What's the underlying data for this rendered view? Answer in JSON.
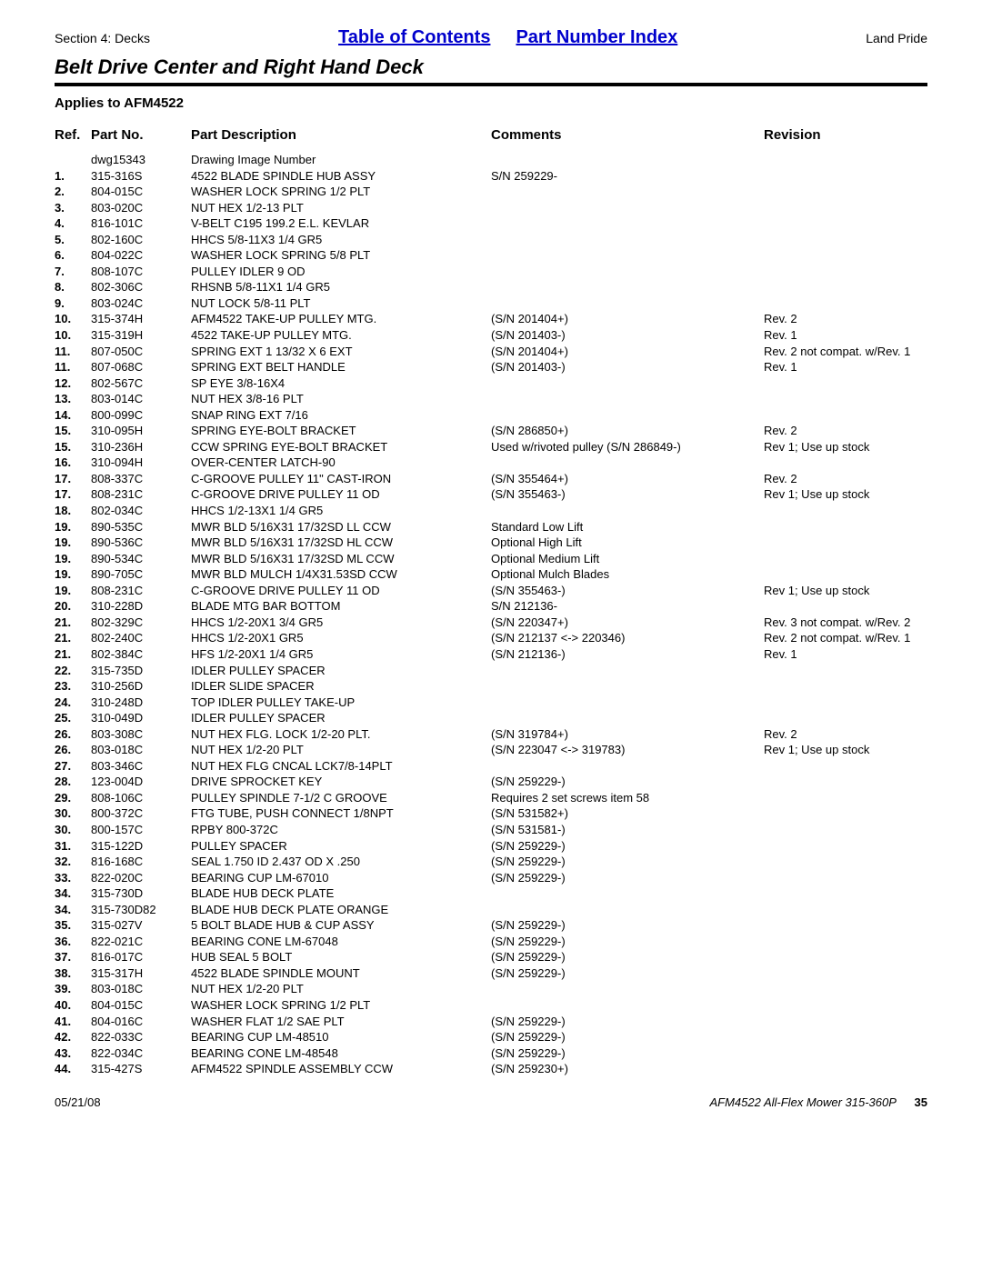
{
  "header": {
    "section": "Section 4: Decks",
    "link1": "Table of Contents",
    "link2": "Part Number Index",
    "brand": "Land Pride"
  },
  "title": "Belt Drive Center and Right Hand Deck",
  "applies": "Applies to AFM4522",
  "columns": {
    "ref": "Ref.",
    "part": "Part No.",
    "desc": "Part Description",
    "comm": "Comments",
    "rev": "Revision"
  },
  "rows": [
    {
      "ref": "",
      "part": "dwg15343",
      "desc": "Drawing Image Number",
      "comm": "",
      "rev": ""
    },
    {
      "ref": "1.",
      "part": "315-316S",
      "desc": "4522 BLADE SPINDLE HUB ASSY",
      "comm": "S/N 259229-",
      "rev": ""
    },
    {
      "ref": "2.",
      "part": "804-015C",
      "desc": "WASHER LOCK SPRING 1/2 PLT",
      "comm": "",
      "rev": ""
    },
    {
      "ref": "3.",
      "part": "803-020C",
      "desc": "NUT HEX 1/2-13 PLT",
      "comm": "",
      "rev": ""
    },
    {
      "ref": "4.",
      "part": "816-101C",
      "desc": "V-BELT C195 199.2 E.L. KEVLAR",
      "comm": "",
      "rev": ""
    },
    {
      "ref": "5.",
      "part": "802-160C",
      "desc": "HHCS 5/8-11X3 1/4 GR5",
      "comm": "",
      "rev": ""
    },
    {
      "ref": "6.",
      "part": "804-022C",
      "desc": "WASHER LOCK SPRING 5/8 PLT",
      "comm": "",
      "rev": ""
    },
    {
      "ref": "7.",
      "part": "808-107C",
      "desc": "PULLEY IDLER 9 OD",
      "comm": "",
      "rev": ""
    },
    {
      "ref": "8.",
      "part": "802-306C",
      "desc": "RHSNB 5/8-11X1 1/4 GR5",
      "comm": "",
      "rev": ""
    },
    {
      "ref": "9.",
      "part": "803-024C",
      "desc": "NUT LOCK 5/8-11 PLT",
      "comm": "",
      "rev": ""
    },
    {
      "ref": "10.",
      "part": "315-374H",
      "desc": "AFM4522 TAKE-UP PULLEY MTG.",
      "comm": "(S/N 201404+)",
      "rev": "Rev. 2"
    },
    {
      "ref": "10.",
      "part": "315-319H",
      "desc": "4522 TAKE-UP PULLEY MTG.",
      "comm": "(S/N 201403-)",
      "rev": "Rev. 1"
    },
    {
      "ref": "11.",
      "part": "807-050C",
      "desc": "SPRING EXT 1 13/32 X 6 EXT",
      "comm": "(S/N 201404+)",
      "rev": "Rev. 2 not compat. w/Rev. 1"
    },
    {
      "ref": "11.",
      "part": "807-068C",
      "desc": "SPRING EXT BELT HANDLE",
      "comm": "(S/N 201403-)",
      "rev": "Rev. 1"
    },
    {
      "ref": "12.",
      "part": "802-567C",
      "desc": "SP EYE 3/8-16X4",
      "comm": "",
      "rev": ""
    },
    {
      "ref": "13.",
      "part": "803-014C",
      "desc": "NUT HEX 3/8-16 PLT",
      "comm": "",
      "rev": ""
    },
    {
      "ref": "14.",
      "part": "800-099C",
      "desc": "SNAP RING EXT 7/16",
      "comm": "",
      "rev": ""
    },
    {
      "ref": "15.",
      "part": "310-095H",
      "desc": "SPRING EYE-BOLT BRACKET",
      "comm": "(S/N 286850+)",
      "rev": "Rev. 2"
    },
    {
      "ref": "15.",
      "part": "310-236H",
      "desc": "CCW SPRING EYE-BOLT BRACKET",
      "comm": "Used w/rivoted pulley (S/N 286849-)",
      "rev": "Rev 1; Use up stock"
    },
    {
      "ref": "16.",
      "part": "310-094H",
      "desc": "OVER-CENTER LATCH-90",
      "comm": "",
      "rev": ""
    },
    {
      "ref": "17.",
      "part": "808-337C",
      "desc": "C-GROOVE PULLEY 11\" CAST-IRON",
      "comm": "(S/N 355464+)",
      "rev": "Rev. 2"
    },
    {
      "ref": "17.",
      "part": "808-231C",
      "desc": "C-GROOVE DRIVE PULLEY 11 OD",
      "comm": "(S/N 355463-)",
      "rev": "Rev 1; Use up stock"
    },
    {
      "ref": "18.",
      "part": "802-034C",
      "desc": "HHCS 1/2-13X1 1/4 GR5",
      "comm": "",
      "rev": ""
    },
    {
      "ref": "19.",
      "part": "890-535C",
      "desc": "MWR BLD 5/16X31 17/32SD LL CCW",
      "comm": "Standard Low Lift",
      "rev": ""
    },
    {
      "ref": "19.",
      "part": "890-536C",
      "desc": "MWR BLD 5/16X31 17/32SD HL CCW",
      "comm": "Optional High Lift",
      "rev": ""
    },
    {
      "ref": "19.",
      "part": "890-534C",
      "desc": "MWR BLD 5/16X31 17/32SD ML CCW",
      "comm": "Optional Medium Lift",
      "rev": ""
    },
    {
      "ref": "19.",
      "part": "890-705C",
      "desc": "MWR BLD MULCH 1/4X31.53SD CCW",
      "comm": "Optional Mulch Blades",
      "rev": ""
    },
    {
      "ref": "19.",
      "part": "808-231C",
      "desc": "C-GROOVE DRIVE PULLEY 11 OD",
      "comm": "(S/N 355463-)",
      "rev": "Rev 1; Use up stock"
    },
    {
      "ref": "20.",
      "part": "310-228D",
      "desc": "BLADE MTG BAR BOTTOM",
      "comm": "S/N 212136-",
      "rev": ""
    },
    {
      "ref": "21.",
      "part": "802-329C",
      "desc": "HHCS 1/2-20X1 3/4 GR5",
      "comm": "(S/N 220347+)",
      "rev": "Rev. 3 not compat. w/Rev. 2"
    },
    {
      "ref": "21.",
      "part": "802-240C",
      "desc": "HHCS 1/2-20X1 GR5",
      "comm": "(S/N 212137 <-> 220346)",
      "rev": "Rev. 2 not compat. w/Rev. 1"
    },
    {
      "ref": "21.",
      "part": "802-384C",
      "desc": "HFS 1/2-20X1 1/4 GR5",
      "comm": "(S/N 212136-)",
      "rev": "Rev. 1"
    },
    {
      "ref": "22.",
      "part": "315-735D",
      "desc": "IDLER PULLEY SPACER",
      "comm": "",
      "rev": ""
    },
    {
      "ref": "23.",
      "part": "310-256D",
      "desc": "IDLER SLIDE SPACER",
      "comm": "",
      "rev": ""
    },
    {
      "ref": "24.",
      "part": "310-248D",
      "desc": "TOP IDLER PULLEY TAKE-UP",
      "comm": "",
      "rev": ""
    },
    {
      "ref": "25.",
      "part": "310-049D",
      "desc": "IDLER PULLEY SPACER",
      "comm": "",
      "rev": ""
    },
    {
      "ref": "26.",
      "part": "803-308C",
      "desc": "NUT HEX FLG. LOCK 1/2-20 PLT.",
      "comm": "(S/N 319784+)",
      "rev": "Rev. 2"
    },
    {
      "ref": "26.",
      "part": "803-018C",
      "desc": "NUT HEX 1/2-20 PLT",
      "comm": "(S/N 223047 <-> 319783)",
      "rev": "Rev 1; Use up stock"
    },
    {
      "ref": "27.",
      "part": "803-346C",
      "desc": "NUT HEX FLG CNCAL LCK7/8-14PLT",
      "comm": "",
      "rev": ""
    },
    {
      "ref": "28.",
      "part": "123-004D",
      "desc": "DRIVE SPROCKET KEY",
      "comm": "(S/N 259229-)",
      "rev": ""
    },
    {
      "ref": "29.",
      "part": "808-106C",
      "desc": "PULLEY SPINDLE 7-1/2 C GROOVE",
      "comm": "Requires 2 set screws item 58",
      "rev": ""
    },
    {
      "ref": "30.",
      "part": "800-372C",
      "desc": "FTG TUBE, PUSH CONNECT 1/8NPT",
      "comm": "(S/N 531582+)",
      "rev": ""
    },
    {
      "ref": "30.",
      "part": "800-157C",
      "desc": "RPBY 800-372C",
      "comm": "(S/N 531581-)",
      "rev": ""
    },
    {
      "ref": "31.",
      "part": "315-122D",
      "desc": "PULLEY SPACER",
      "comm": "(S/N 259229-)",
      "rev": ""
    },
    {
      "ref": "32.",
      "part": "816-168C",
      "desc": "SEAL 1.750 ID 2.437 OD X .250",
      "comm": "(S/N 259229-)",
      "rev": ""
    },
    {
      "ref": "33.",
      "part": "822-020C",
      "desc": "BEARING CUP LM-67010",
      "comm": "(S/N 259229-)",
      "rev": ""
    },
    {
      "ref": "34.",
      "part": "315-730D",
      "desc": "BLADE HUB DECK PLATE",
      "comm": "",
      "rev": ""
    },
    {
      "ref": "34.",
      "part": "315-730D82",
      "desc": "BLADE HUB DECK PLATE ORANGE",
      "comm": "",
      "rev": ""
    },
    {
      "ref": "35.",
      "part": "315-027V",
      "desc": "5 BOLT BLADE HUB & CUP ASSY",
      "comm": "(S/N 259229-)",
      "rev": ""
    },
    {
      "ref": "36.",
      "part": "822-021C",
      "desc": "BEARING CONE LM-67048",
      "comm": "(S/N 259229-)",
      "rev": ""
    },
    {
      "ref": "37.",
      "part": "816-017C",
      "desc": "HUB SEAL 5 BOLT",
      "comm": "(S/N 259229-)",
      "rev": ""
    },
    {
      "ref": "38.",
      "part": "315-317H",
      "desc": "4522 BLADE SPINDLE MOUNT",
      "comm": "(S/N 259229-)",
      "rev": ""
    },
    {
      "ref": "39.",
      "part": "803-018C",
      "desc": "NUT HEX 1/2-20 PLT",
      "comm": "",
      "rev": ""
    },
    {
      "ref": "40.",
      "part": "804-015C",
      "desc": "WASHER LOCK SPRING 1/2 PLT",
      "comm": "",
      "rev": ""
    },
    {
      "ref": "41.",
      "part": "804-016C",
      "desc": "WASHER FLAT 1/2 SAE PLT",
      "comm": "(S/N 259229-)",
      "rev": ""
    },
    {
      "ref": "42.",
      "part": "822-033C",
      "desc": "BEARING CUP LM-48510",
      "comm": "(S/N 259229-)",
      "rev": ""
    },
    {
      "ref": "43.",
      "part": "822-034C",
      "desc": "BEARING CONE LM-48548",
      "comm": "(S/N 259229-)",
      "rev": ""
    },
    {
      "ref": "44.",
      "part": "315-427S",
      "desc": "AFM4522 SPINDLE ASSEMBLY CCW",
      "comm": "(S/N 259230+)",
      "rev": ""
    }
  ],
  "footer": {
    "date": "05/21/08",
    "model": "AFM4522 All-Flex Mower 315-360P",
    "page": "35"
  }
}
